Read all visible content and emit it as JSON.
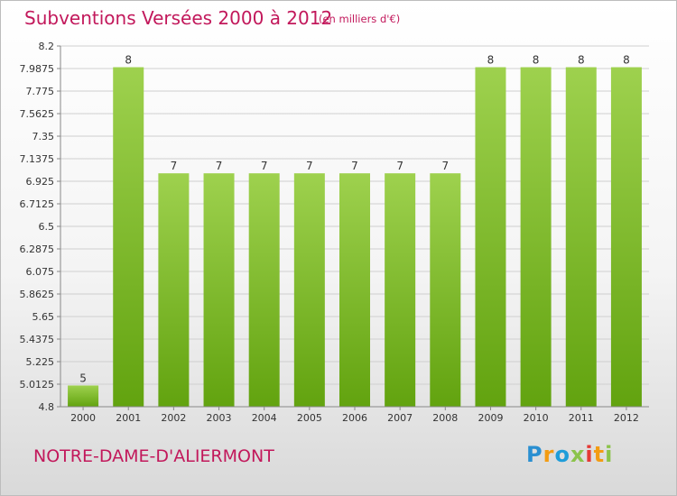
{
  "header": {
    "title": "Subventions Versées 2000 à 2012",
    "subtitle": "(en milliers d'€)"
  },
  "footer": {
    "commune": "NOTRE-DAME-D'ALIERMONT",
    "logo_text": "Proxiti"
  },
  "colors": {
    "title": "#c2185b",
    "bar_light": "#9ed14e",
    "bar_dark": "#62a30f",
    "grid": "#cfcfcf",
    "axis_text": "#333333"
  },
  "chart_data": {
    "type": "bar",
    "title": "Subventions Versées 2000 à 2012",
    "subtitle": "(en milliers d'€)",
    "xlabel": "",
    "ylabel": "",
    "categories": [
      "2000",
      "2001",
      "2002",
      "2003",
      "2004",
      "2005",
      "2006",
      "2007",
      "2008",
      "2009",
      "2010",
      "2011",
      "2012"
    ],
    "values": [
      5,
      8,
      7,
      7,
      7,
      7,
      7,
      7,
      7,
      8,
      8,
      8,
      8
    ],
    "data_labels": [
      "5",
      "8",
      "7",
      "7",
      "7",
      "7",
      "7",
      "7",
      "7",
      "8",
      "8",
      "8",
      "8"
    ],
    "ylim": [
      4.8,
      8.2
    ],
    "yticks": [
      8.2,
      7.9875,
      7.775,
      7.5625,
      7.35,
      7.1375,
      6.925,
      6.7125,
      6.5,
      6.2875,
      6.075,
      5.8625,
      5.65,
      5.4375,
      5.225,
      5.0125,
      4.8
    ],
    "ytick_labels": [
      "8.2",
      "7.9875",
      "7.775",
      "7.5625",
      "7.35",
      "7.1375",
      "6.925",
      "6.7125",
      "6.5",
      "6.2875",
      "6.075",
      "5.8625",
      "5.65",
      "5.4375",
      "5.225",
      "5.0125",
      "4.8"
    ],
    "grid": true,
    "legend": "none"
  }
}
